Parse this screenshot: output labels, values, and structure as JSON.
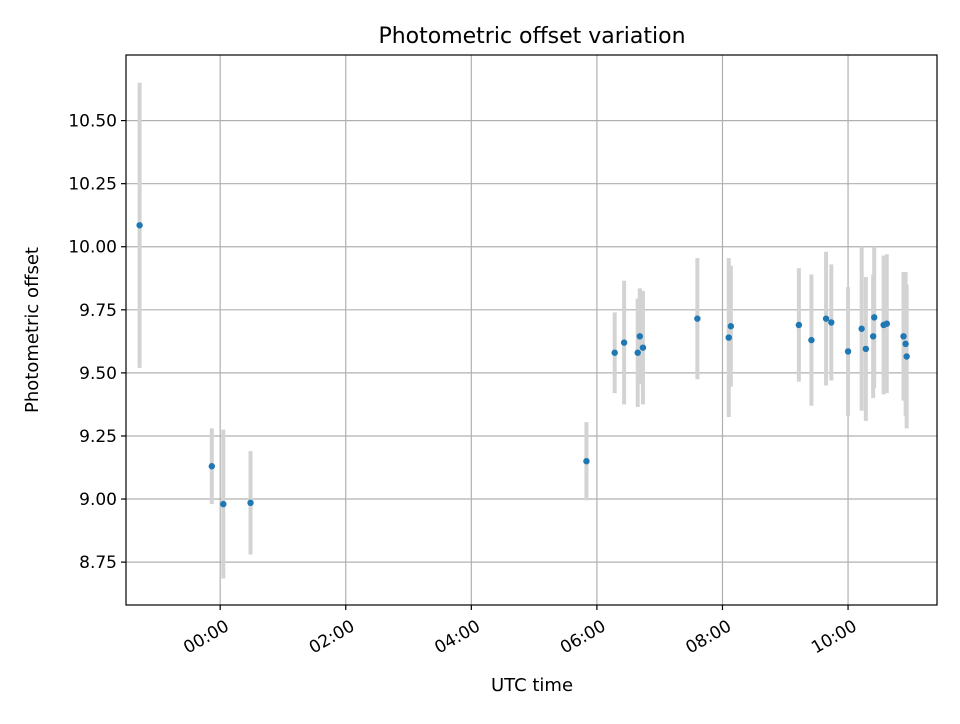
{
  "chart_data": {
    "type": "scatter",
    "title": "Photometric offset variation",
    "xlabel": "UTC time",
    "ylabel": "Photometric offset",
    "x_unit": "hours (UTC)",
    "xlim": [
      "22:30",
      "11:25"
    ],
    "ylim": [
      8.58,
      10.76
    ],
    "grid": true,
    "x_ticks": [
      "00:00",
      "02:00",
      "04:00",
      "06:00",
      "08:00",
      "10:00"
    ],
    "y_ticks": [
      "8.75",
      "9.00",
      "9.25",
      "9.50",
      "9.75",
      "10.00",
      "10.25",
      "10.50"
    ],
    "colors": {
      "points": "#1f77b4",
      "errorbars": "#d3d3d3",
      "grid": "#b0b0b0"
    },
    "points": [
      {
        "x": "22:43",
        "y": 10.085,
        "yerr": 0.565
      },
      {
        "x": "23:52",
        "y": 9.13,
        "yerr": 0.15
      },
      {
        "x": "00:03",
        "y": 8.98,
        "yerr": 0.295
      },
      {
        "x": "00:29",
        "y": 8.985,
        "yerr": 0.205
      },
      {
        "x": "05:50",
        "y": 9.15,
        "yerr": 0.155
      },
      {
        "x": "06:17",
        "y": 9.58,
        "yerr": 0.16
      },
      {
        "x": "06:26",
        "y": 9.62,
        "yerr": 0.245
      },
      {
        "x": "06:39",
        "y": 9.58,
        "yerr": 0.215
      },
      {
        "x": "06:41",
        "y": 9.645,
        "yerr": 0.19
      },
      {
        "x": "06:44",
        "y": 9.6,
        "yerr": 0.225
      },
      {
        "x": "07:36",
        "y": 9.715,
        "yerr": 0.24
      },
      {
        "x": "08:06",
        "y": 9.64,
        "yerr": 0.315
      },
      {
        "x": "08:08",
        "y": 9.685,
        "yerr": 0.24
      },
      {
        "x": "09:13",
        "y": 9.69,
        "yerr": 0.225
      },
      {
        "x": "09:25",
        "y": 9.63,
        "yerr": 0.26
      },
      {
        "x": "09:39",
        "y": 9.715,
        "yerr": 0.265
      },
      {
        "x": "09:44",
        "y": 9.7,
        "yerr": 0.23
      },
      {
        "x": "10:00",
        "y": 9.585,
        "yerr": 0.255
      },
      {
        "x": "10:13",
        "y": 9.675,
        "yerr": 0.325
      },
      {
        "x": "10:17",
        "y": 9.595,
        "yerr": 0.285
      },
      {
        "x": "10:24",
        "y": 9.645,
        "yerr": 0.245
      },
      {
        "x": "10:25",
        "y": 9.72,
        "yerr": 0.28
      },
      {
        "x": "10:34",
        "y": 9.69,
        "yerr": 0.275
      },
      {
        "x": "10:37",
        "y": 9.695,
        "yerr": 0.275
      },
      {
        "x": "10:53",
        "y": 9.645,
        "yerr": 0.255
      },
      {
        "x": "10:55",
        "y": 9.615,
        "yerr": 0.285
      },
      {
        "x": "10:56",
        "y": 9.565,
        "yerr": 0.285
      }
    ]
  }
}
